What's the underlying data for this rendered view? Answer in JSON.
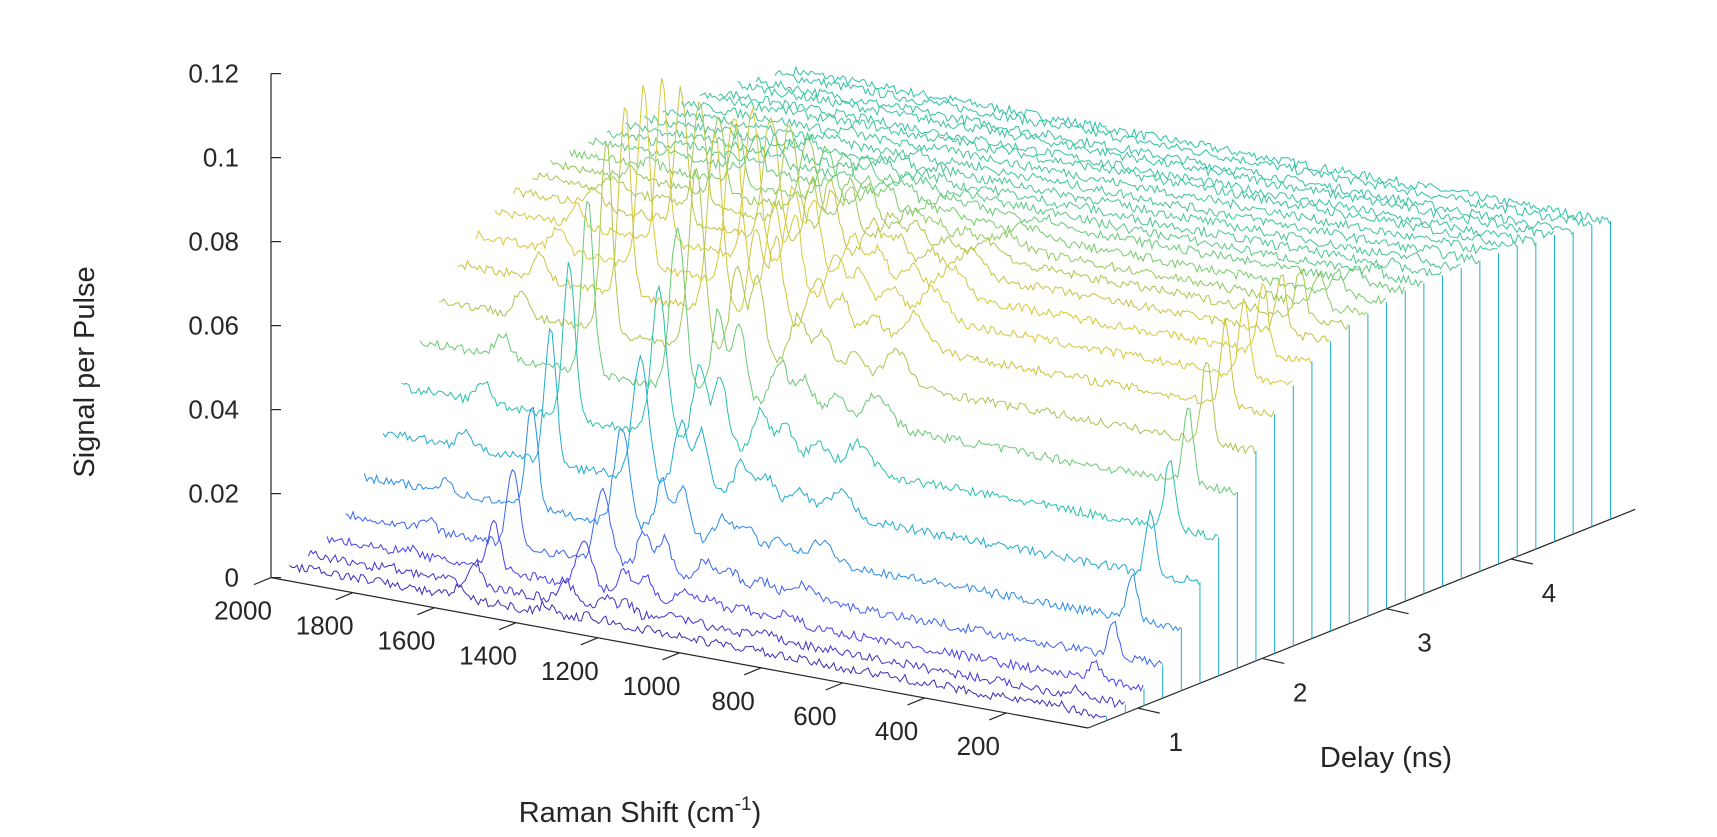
{
  "chart_data": {
    "type": "waterfall",
    "xlabel": "Raman Shift (cm",
    "xlabel_superscript": "-1",
    "xlabel_suffix": ")",
    "ylabel": "Delay (ns)",
    "zlabel": "Signal per Pulse",
    "x_range": [
      0,
      2000
    ],
    "x_ticks": [
      "2000",
      "1800",
      "1600",
      "1400",
      "1200",
      "1000",
      "800",
      "600",
      "400",
      "200"
    ],
    "x_tick_values": [
      2000,
      1800,
      1600,
      1400,
      1200,
      1000,
      800,
      600,
      400,
      200
    ],
    "y_range": [
      0.6,
      5
    ],
    "y_ticks": [
      "1",
      "2",
      "3",
      "4"
    ],
    "y_tick_values": [
      1,
      2,
      3,
      4
    ],
    "z_range": [
      0,
      0.12
    ],
    "z_ticks": [
      "0",
      "0.02",
      "0.04",
      "0.06",
      "0.08",
      "0.1",
      "0.12"
    ],
    "z_tick_values": [
      0,
      0.02,
      0.04,
      0.06,
      0.08,
      0.1,
      0.12
    ],
    "colormap": [
      "#3e26a8",
      "#4743f8",
      "#2f80ee",
      "#1fa6d8",
      "#23c0b1",
      "#74cc6c",
      "#d3c33b",
      "#f9fb15"
    ],
    "delays_ns": [
      0.75,
      0.9,
      1.05,
      1.2,
      1.35,
      1.5,
      1.65,
      1.8,
      1.95,
      2.1,
      2.25,
      2.4,
      2.55,
      2.7,
      2.85,
      3.0,
      3.15,
      3.3,
      3.45,
      3.6,
      3.75,
      3.9,
      4.05,
      4.2,
      4.35,
      4.5,
      4.65,
      4.8
    ],
    "baseline_by_delay": [
      0.001,
      0.002,
      0.004,
      0.008,
      0.015,
      0.024,
      0.033,
      0.042,
      0.05,
      0.057,
      0.062,
      0.066,
      0.069,
      0.071,
      0.072,
      0.073,
      0.074,
      0.074,
      0.074,
      0.074,
      0.074,
      0.074,
      0.074,
      0.073,
      0.073,
      0.072,
      0.072,
      0.071
    ],
    "peak_scale_by_delay": [
      0.05,
      0.12,
      0.25,
      0.4,
      0.55,
      0.7,
      0.82,
      0.92,
      1.0,
      1.0,
      0.95,
      0.85,
      0.7,
      0.55,
      0.42,
      0.3,
      0.2,
      0.13,
      0.08,
      0.05,
      0.03,
      0.02,
      0.01,
      0.0,
      0.0,
      0.0,
      0.0,
      0.0
    ],
    "peaks": [
      {
        "center": 1590,
        "height": 0.045,
        "width": 14
      },
      {
        "center": 1370,
        "height": 0.042,
        "width": 18
      },
      {
        "center": 1270,
        "height": 0.022,
        "width": 16
      },
      {
        "center": 1220,
        "height": 0.02,
        "width": 16
      },
      {
        "center": 1120,
        "height": 0.012,
        "width": 20
      },
      {
        "center": 1060,
        "height": 0.009,
        "width": 20
      },
      {
        "center": 980,
        "height": 0.006,
        "width": 22
      },
      {
        "center": 880,
        "height": 0.008,
        "width": 30
      },
      {
        "center": 120,
        "height": 0.02,
        "width": 12
      },
      {
        "center": 1800,
        "height": 0.006,
        "width": 16
      }
    ]
  }
}
